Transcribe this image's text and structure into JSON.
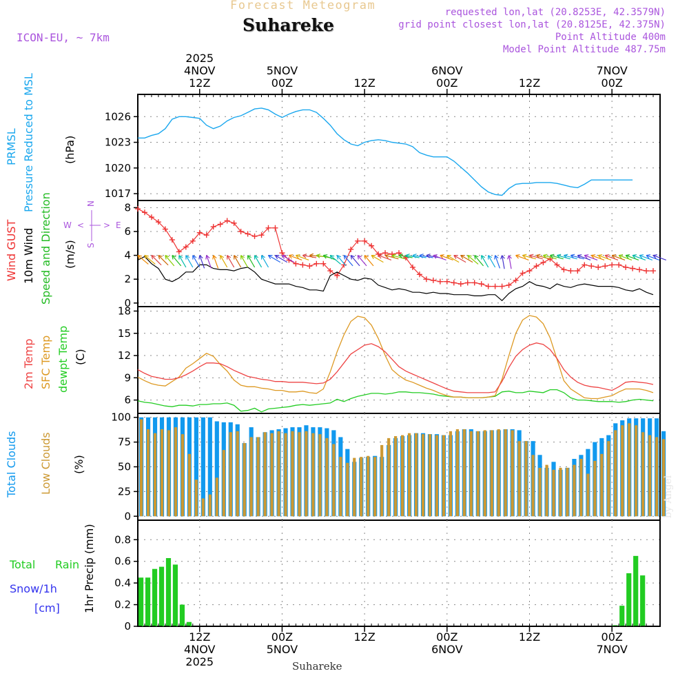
{
  "header": {
    "forecast_title": "Forecast Meteogram",
    "location": "Suhareke",
    "model": "ICON-EU, ~ 7km",
    "requested": "requested lon,lat (20.8253E, 42.3579N)",
    "grid_point": "grid point closest lon,lat (20.8125E, 42.375N)",
    "point_altitude": "Point Altitude 400m",
    "model_altitude": "Model Point Altitude 487.75m",
    "footer_location": "Suhareke",
    "credit": "by Angel"
  },
  "colors": {
    "pressure": "#1aa7ee",
    "gust": "#ee3333",
    "wind": "#000000",
    "direction": "#22bb22",
    "temp2m": "#ee4444",
    "sfc": "#dd9922",
    "dewpt": "#22cc22",
    "total_clouds": "#1199ee",
    "low_clouds": "#cc9933",
    "rain": "#22cc22",
    "snow": "#3333ee",
    "header": "#aa55dd",
    "title_faded": "#e8c890"
  },
  "chart_data": {
    "type": "meteogram",
    "hours": 72,
    "start": "2025-11-04 03Z",
    "time_axis": {
      "top_year": "2025",
      "ticks": [
        {
          "hour": 9,
          "top": [
            "4NOV",
            "12Z"
          ],
          "bottom": [
            "12Z",
            "4NOV",
            "2025"
          ]
        },
        {
          "hour": 21,
          "top": [
            "5NOV",
            "00Z"
          ],
          "bottom": [
            "00Z",
            "5NOV"
          ]
        },
        {
          "hour": 33,
          "top": [
            "12Z"
          ],
          "bottom": [
            "12Z"
          ]
        },
        {
          "hour": 45,
          "top": [
            "6NOV",
            "00Z"
          ],
          "bottom": [
            "00Z",
            "6NOV"
          ]
        },
        {
          "hour": 57,
          "top": [
            "12Z"
          ],
          "bottom": [
            "12Z"
          ]
        },
        {
          "hour": 69,
          "top": [
            "7NOV",
            "00Z"
          ],
          "bottom": [
            "00Z",
            "7NOV"
          ]
        }
      ]
    },
    "pressure": {
      "labels": [
        "PRMSL",
        "Pressure Reduced to MSL"
      ],
      "unit": "(hPa)",
      "ylim": [
        1016.2,
        1028.6
      ],
      "yticks": [
        1017,
        1020,
        1023,
        1026
      ],
      "x": [
        0,
        1,
        2,
        3,
        4,
        5,
        6,
        7,
        8,
        9,
        10,
        11,
        12,
        13,
        14,
        15,
        16,
        17,
        18,
        19,
        20,
        21,
        22,
        23,
        24,
        25,
        26,
        27,
        28,
        29,
        30,
        31,
        32,
        33,
        34,
        35,
        36,
        37,
        38,
        39,
        40,
        41,
        42,
        43,
        44,
        45,
        46,
        47,
        48,
        49,
        50,
        51,
        52,
        53,
        54,
        55,
        56,
        57,
        58,
        59,
        60,
        61,
        62,
        63,
        64,
        65,
        66,
        67,
        68,
        69,
        70,
        71,
        72
      ],
      "values": [
        1023.5,
        1023.5,
        1023.8,
        1024.0,
        1024.6,
        1025.7,
        1026.0,
        1026.0,
        1025.9,
        1025.8,
        1025.0,
        1024.6,
        1024.9,
        1025.5,
        1025.9,
        1026.1,
        1026.5,
        1026.9,
        1027.0,
        1026.8,
        1026.3,
        1025.9,
        1026.3,
        1026.6,
        1026.8,
        1026.8,
        1026.5,
        1025.8,
        1025.0,
        1024.0,
        1023.3,
        1022.8,
        1022.6,
        1023.0,
        1023.2,
        1023.3,
        1023.2,
        1023.0,
        1022.9,
        1022.8,
        1022.5,
        1021.8,
        1021.5,
        1021.3,
        1021.3,
        1021.3,
        1020.8,
        1020.1,
        1019.4,
        1018.6,
        1017.8,
        1017.2,
        1016.9,
        1016.8,
        1017.6,
        1018.1,
        1018.2,
        1018.2,
        1018.3,
        1018.3,
        1018.3,
        1018.2,
        1018.0,
        1017.8,
        1017.7,
        1018.1,
        1018.6,
        1018.6,
        1018.6,
        1018.6,
        1018.6,
        1018.6,
        1018.6
      ]
    },
    "wind": {
      "labels": [
        "Wind GUST",
        "10m Wind",
        "Speed and Direction"
      ],
      "unit": "(m/s)",
      "compass": {
        "n": "N",
        "w": "W",
        "e": "E",
        "s": "S",
        "arrow_left": "<",
        "arrow_right": ">"
      },
      "ylim": [
        -0.3,
        8.6
      ],
      "yticks": [
        0,
        2,
        4,
        6,
        8
      ],
      "x": [
        0,
        1,
        2,
        3,
        4,
        5,
        6,
        7,
        8,
        9,
        10,
        11,
        12,
        13,
        14,
        15,
        16,
        17,
        18,
        19,
        20,
        21,
        22,
        23,
        24,
        25,
        26,
        27,
        28,
        29,
        30,
        31,
        32,
        33,
        34,
        35,
        36,
        37,
        38,
        39,
        40,
        41,
        42,
        43,
        44,
        45,
        46,
        47,
        48,
        49,
        50,
        51,
        52,
        53,
        54,
        55,
        56,
        57,
        58,
        59,
        60,
        61,
        62,
        63,
        64,
        65,
        66,
        67,
        68,
        69,
        70,
        71,
        72,
        73,
        74,
        75
      ],
      "gust": [
        7.9,
        7.6,
        7.2,
        6.8,
        6.2,
        5.3,
        4.3,
        4.7,
        5.2,
        5.9,
        5.7,
        6.4,
        6.6,
        6.9,
        6.7,
        6.0,
        5.8,
        5.6,
        5.7,
        6.3,
        6.3,
        4.2,
        3.6,
        3.3,
        3.2,
        3.1,
        3.3,
        3.3,
        2.7,
        2.3,
        3.2,
        4.5,
        5.2,
        5.2,
        4.8,
        4.1,
        4.2,
        4.1,
        4.2,
        3.8,
        3.0,
        2.4,
        2.0,
        1.9,
        1.8,
        1.8,
        1.7,
        1.6,
        1.7,
        1.7,
        1.6,
        1.4,
        1.4,
        1.4,
        1.5,
        1.9,
        2.5,
        2.7,
        3.1,
        3.4,
        3.7,
        3.2,
        2.8,
        2.7,
        2.7,
        3.2,
        3.1,
        3.0,
        3.1,
        3.2,
        3.2,
        3.0,
        2.9,
        2.8,
        2.7,
        2.7
      ],
      "speed": [
        3.6,
        3.9,
        3.3,
        2.9,
        2.0,
        1.8,
        2.1,
        2.6,
        2.6,
        3.2,
        3.2,
        2.9,
        2.8,
        2.8,
        2.7,
        2.9,
        3.0,
        2.6,
        2.0,
        1.8,
        1.6,
        1.6,
        1.6,
        1.4,
        1.3,
        1.1,
        1.1,
        1.0,
        2.3,
        2.6,
        2.3,
        2.0,
        1.9,
        2.1,
        2.0,
        1.5,
        1.3,
        1.1,
        1.2,
        1.1,
        0.9,
        0.9,
        0.8,
        0.9,
        0.8,
        0.8,
        0.7,
        0.7,
        0.7,
        0.6,
        0.6,
        0.7,
        0.7,
        0.2,
        0.8,
        1.2,
        1.4,
        1.8,
        1.5,
        1.4,
        1.2,
        1.6,
        1.4,
        1.3,
        1.5,
        1.6,
        1.5,
        1.4,
        1.4,
        1.4,
        1.3,
        1.1,
        1.0,
        1.2,
        0.9,
        0.7
      ],
      "direction_deg": [
        40,
        40,
        45,
        45,
        50,
        50,
        60,
        60,
        60,
        70,
        70,
        70,
        60,
        60,
        60,
        60,
        60,
        60,
        60,
        30,
        30,
        30,
        20,
        20,
        10,
        5,
        10,
        20,
        40,
        50,
        50,
        50,
        50,
        50,
        30,
        20,
        15,
        15,
        10,
        10,
        10,
        10,
        10,
        20,
        20,
        30,
        30,
        30,
        40,
        50,
        60,
        60,
        70,
        80,
        80,
        20,
        15,
        15,
        15,
        15,
        15,
        15,
        15,
        15,
        20,
        20,
        20,
        20,
        20,
        20,
        20,
        20,
        20,
        20,
        20,
        20
      ]
    },
    "temperature": {
      "labels": [
        "2m Temp",
        "SFC Temp",
        "dewpt Temp"
      ],
      "unit": "(C)",
      "ylim": [
        4.2,
        18.6
      ],
      "yticks": [
        6,
        9,
        12,
        15,
        18
      ],
      "x": [
        0,
        1,
        2,
        3,
        4,
        5,
        6,
        7,
        8,
        9,
        10,
        11,
        12,
        13,
        14,
        15,
        16,
        17,
        18,
        19,
        20,
        21,
        22,
        23,
        24,
        25,
        26,
        27,
        28,
        29,
        30,
        31,
        32,
        33,
        34,
        35,
        36,
        37,
        38,
        39,
        40,
        41,
        42,
        43,
        44,
        45,
        46,
        47,
        48,
        49,
        50,
        51,
        52,
        53,
        54,
        55,
        56,
        57,
        58,
        59,
        60,
        61,
        62,
        63,
        64,
        65,
        66,
        67,
        68,
        69,
        70,
        71,
        72,
        73,
        74,
        75
      ],
      "temp2m": [
        10.1,
        9.6,
        9.2,
        9.0,
        8.8,
        8.8,
        9.0,
        9.4,
        9.9,
        10.5,
        11.0,
        11.0,
        10.9,
        10.5,
        10.0,
        9.6,
        9.2,
        9.0,
        8.8,
        8.7,
        8.5,
        8.5,
        8.4,
        8.4,
        8.4,
        8.3,
        8.2,
        8.3,
        8.8,
        9.8,
        11.0,
        12.2,
        12.8,
        13.4,
        13.6,
        13.2,
        12.5,
        11.5,
        10.5,
        9.9,
        9.5,
        9.1,
        8.7,
        8.3,
        7.9,
        7.5,
        7.2,
        7.1,
        7.0,
        7.0,
        7.0,
        7.0,
        7.1,
        8.5,
        10.4,
        11.9,
        12.8,
        13.4,
        13.7,
        13.5,
        12.8,
        11.6,
        10.1,
        9.1,
        8.4,
        8.0,
        7.8,
        7.7,
        7.5,
        7.3,
        7.8,
        8.4,
        8.5,
        8.4,
        8.3,
        8.1
      ],
      "sfc": [
        9.1,
        8.6,
        8.2,
        8.0,
        7.9,
        8.5,
        9.1,
        10.3,
        10.9,
        11.6,
        12.3,
        11.9,
        10.8,
        9.9,
        8.7,
        8.0,
        7.8,
        7.8,
        7.6,
        7.5,
        7.3,
        7.3,
        7.1,
        7.1,
        7.2,
        7.0,
        6.9,
        7.5,
        9.8,
        12.5,
        14.8,
        16.6,
        17.3,
        17.1,
        16.1,
        14.3,
        12.0,
        10.1,
        9.3,
        8.7,
        8.4,
        8.0,
        7.6,
        7.3,
        6.9,
        6.6,
        6.4,
        6.4,
        6.3,
        6.3,
        6.3,
        6.4,
        6.6,
        8.8,
        12.0,
        15.0,
        16.8,
        17.4,
        17.2,
        16.3,
        14.4,
        11.5,
        8.6,
        7.5,
        6.9,
        6.3,
        6.2,
        6.2,
        6.4,
        6.6,
        7.1,
        7.5,
        7.5,
        7.5,
        7.3,
        7.0
      ],
      "dewpt": [
        5.9,
        5.7,
        5.6,
        5.4,
        5.2,
        5.1,
        5.3,
        5.3,
        5.2,
        5.4,
        5.4,
        5.5,
        5.5,
        5.6,
        5.3,
        4.5,
        4.6,
        4.9,
        4.4,
        4.8,
        4.9,
        5.0,
        5.1,
        5.3,
        5.4,
        5.3,
        5.4,
        5.5,
        5.6,
        6.1,
        5.8,
        6.2,
        6.5,
        6.7,
        6.9,
        6.9,
        6.8,
        6.9,
        7.1,
        7.1,
        7.0,
        7.0,
        6.9,
        6.8,
        6.6,
        6.5,
        6.4,
        6.4,
        6.3,
        6.3,
        6.3,
        6.4,
        6.5,
        7.1,
        7.2,
        7.0,
        7.0,
        7.2,
        7.1,
        7.0,
        7.4,
        7.4,
        7.0,
        6.3,
        6.0,
        6.0,
        5.9,
        5.8,
        5.8,
        5.8,
        5.7,
        5.8,
        6.0,
        6.1,
        6.0,
        5.9
      ]
    },
    "clouds": {
      "labels": [
        "Total Clouds",
        "Low Clouds"
      ],
      "unit": "(%)",
      "ylim": [
        -4,
        104
      ],
      "yticks": [
        0,
        25,
        50,
        75,
        100
      ],
      "x": [
        0,
        1,
        2,
        3,
        4,
        5,
        6,
        7,
        8,
        9,
        10,
        11,
        12,
        13,
        14,
        15,
        16,
        17,
        18,
        19,
        20,
        21,
        22,
        23,
        24,
        25,
        26,
        27,
        28,
        29,
        30,
        31,
        32,
        33,
        34,
        35,
        36,
        37,
        38,
        39,
        40,
        41,
        42,
        43,
        44,
        45,
        46,
        47,
        48,
        49,
        50,
        51,
        52,
        53,
        54,
        55,
        56,
        57,
        58,
        59,
        60,
        61,
        62,
        63,
        64,
        65,
        66,
        67,
        68,
        69,
        70,
        71,
        72,
        73,
        74,
        75,
        76
      ],
      "total": [
        100,
        100,
        100,
        100,
        100,
        100,
        100,
        100,
        100,
        100,
        100,
        96,
        95,
        95,
        93,
        74,
        90,
        80,
        85,
        87,
        88,
        89,
        90,
        90,
        92,
        90,
        90,
        89,
        87,
        80,
        68,
        55,
        59,
        60,
        61,
        60,
        72,
        79,
        81,
        82,
        84,
        84,
        83,
        83,
        82,
        82,
        86,
        88,
        88,
        86,
        86,
        87,
        87,
        88,
        88,
        87,
        76,
        76,
        62,
        49,
        55,
        47,
        49,
        58,
        62,
        68,
        75,
        79,
        82,
        94,
        97,
        99,
        99,
        99,
        99,
        99,
        86
      ],
      "low": [
        98,
        88,
        84,
        88,
        87,
        90,
        83,
        63,
        37,
        18,
        22,
        39,
        67,
        85,
        86,
        74,
        80,
        80,
        85,
        84,
        86,
        84,
        86,
        85,
        86,
        84,
        83,
        79,
        73,
        60,
        54,
        59,
        60,
        61,
        60,
        72,
        79,
        81,
        82,
        84,
        84,
        83,
        83,
        82,
        82,
        86,
        88,
        88,
        86,
        86,
        87,
        87,
        88,
        88,
        87,
        76,
        76,
        62,
        49,
        52,
        47,
        49,
        49,
        52,
        58,
        43,
        56,
        63,
        76,
        87,
        92,
        94,
        92,
        85,
        82,
        80,
        78
      ]
    },
    "precip": {
      "labels": [
        "Total",
        "Rain",
        "Snow/1h",
        "[cm]"
      ],
      "axis_label": "1hr Precip (mm)",
      "ylim": [
        0,
        0.98
      ],
      "yticks": [
        0,
        0.2,
        0.4,
        0.6,
        0.8
      ],
      "x": [
        0,
        1,
        2,
        3,
        4,
        5,
        6,
        7,
        8,
        69,
        70,
        71,
        72,
        73
      ],
      "rain": [
        0.45,
        0.45,
        0.53,
        0.55,
        0.63,
        0.57,
        0.2,
        0.04,
        0.0,
        0.01,
        0.19,
        0.49,
        0.65,
        0.47
      ]
    }
  }
}
